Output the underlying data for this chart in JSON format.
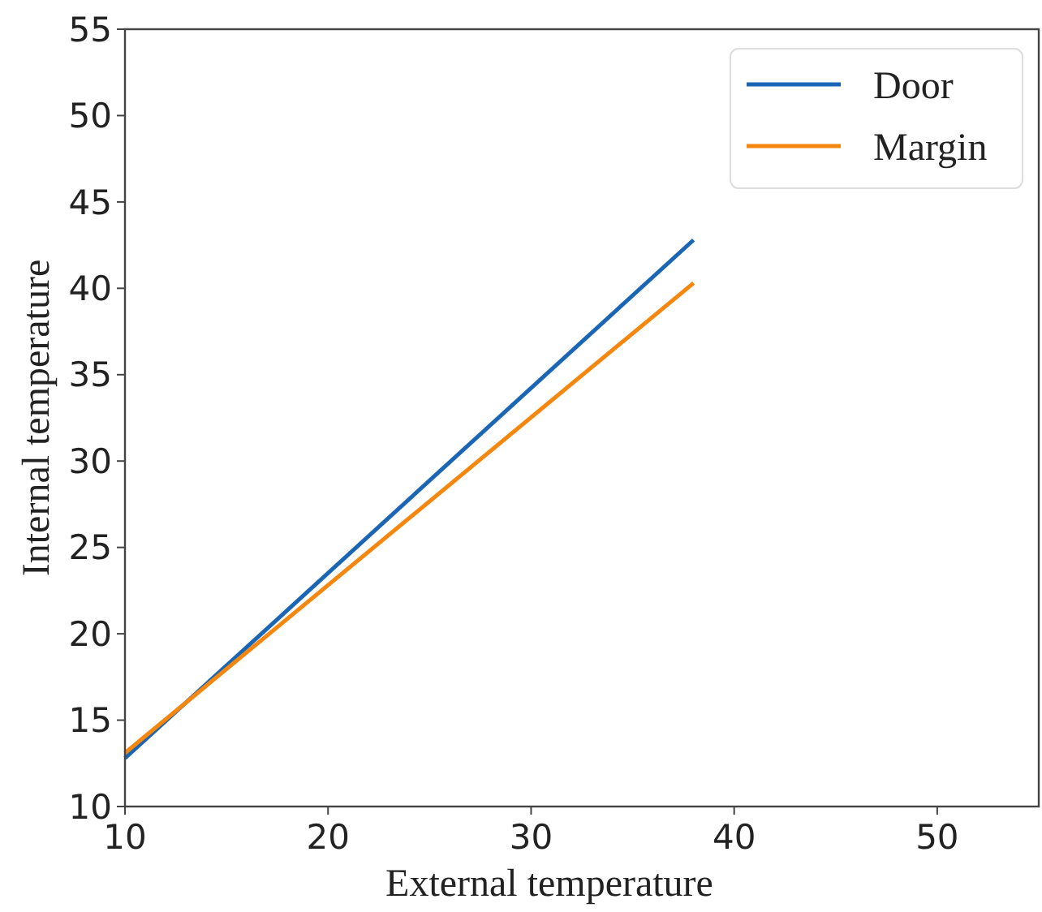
{
  "chart_data": {
    "type": "line",
    "xlabel": "External temperature",
    "ylabel": "Internal temperature",
    "xlim": [
      10,
      55
    ],
    "ylim": [
      10,
      55
    ],
    "xticks": [
      10,
      20,
      30,
      40,
      50
    ],
    "yticks": [
      10,
      15,
      20,
      25,
      30,
      35,
      40,
      45,
      50,
      55
    ],
    "grid": false,
    "x": [
      10,
      38
    ],
    "legend": "top right",
    "marker": "none",
    "line_style": "solid",
    "series": [
      {
        "name": "Door",
        "color": "#1a66b5",
        "values": [
          12.8,
          42.8
        ]
      },
      {
        "name": "Margin",
        "color": "#f5870f",
        "values": [
          13.1,
          40.3
        ]
      }
    ]
  }
}
